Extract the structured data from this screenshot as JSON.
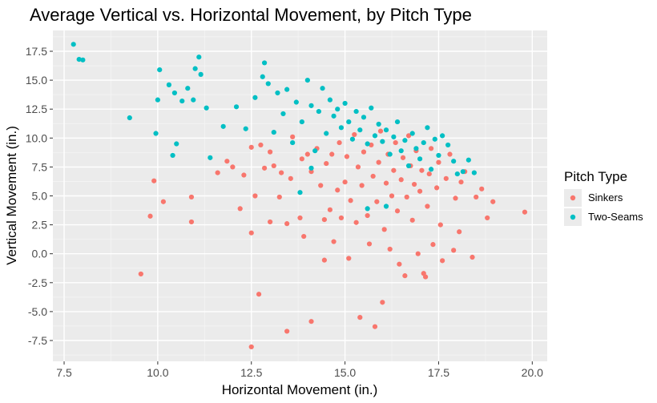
{
  "chart_data": {
    "type": "scatter",
    "title": "Average Vertical vs. Horizontal Movement, by Pitch Type",
    "xlabel": "Horizontal Movement (in.)",
    "ylabel": "Vertical Movement (in.)",
    "xlim": [
      7.2,
      20.4
    ],
    "ylim": [
      -9.3,
      19.3
    ],
    "x_ticks": [
      7.5,
      10.0,
      12.5,
      15.0,
      17.5,
      20.0
    ],
    "x_tick_labels": [
      "7.5",
      "10.0",
      "12.5",
      "15.0",
      "17.5",
      "20.0"
    ],
    "y_ticks": [
      -7.5,
      -5.0,
      -2.5,
      0.0,
      2.5,
      5.0,
      7.5,
      10.0,
      12.5,
      15.0,
      17.5
    ],
    "y_tick_labels": [
      "-7.5",
      "-5.0",
      "-2.5",
      "0.0",
      "2.5",
      "5.0",
      "7.5",
      "10.0",
      "12.5",
      "15.0",
      "17.5"
    ],
    "grid": true,
    "legend": {
      "title": "Pitch Type",
      "placement": "right"
    },
    "series": [
      {
        "name": "Sinkers",
        "color": "#F8766D",
        "points": [
          [
            9.55,
            -1.75
          ],
          [
            9.8,
            3.25
          ],
          [
            9.9,
            6.3
          ],
          [
            10.15,
            4.5
          ],
          [
            10.9,
            4.9
          ],
          [
            10.9,
            2.75
          ],
          [
            11.6,
            7.0
          ],
          [
            11.85,
            8.0
          ],
          [
            12.0,
            7.5
          ],
          [
            12.2,
            3.9
          ],
          [
            12.3,
            6.8
          ],
          [
            12.5,
            9.2
          ],
          [
            12.5,
            1.8
          ],
          [
            12.5,
            -8.05
          ],
          [
            12.6,
            5.0
          ],
          [
            12.7,
            -3.5
          ],
          [
            12.75,
            9.4
          ],
          [
            12.85,
            7.4
          ],
          [
            13.0,
            2.75
          ],
          [
            13.0,
            8.8
          ],
          [
            13.1,
            7.6
          ],
          [
            13.25,
            4.9
          ],
          [
            13.3,
            7.0
          ],
          [
            13.45,
            2.6
          ],
          [
            13.45,
            -6.7
          ],
          [
            13.55,
            6.5
          ],
          [
            13.6,
            10.1
          ],
          [
            13.8,
            3.1
          ],
          [
            13.85,
            8.2
          ],
          [
            13.9,
            1.5
          ],
          [
            14.0,
            8.6
          ],
          [
            14.1,
            -5.85
          ],
          [
            14.1,
            7.1
          ],
          [
            14.25,
            9.1
          ],
          [
            14.35,
            5.9
          ],
          [
            14.45,
            -0.55
          ],
          [
            14.45,
            2.95
          ],
          [
            14.5,
            7.8
          ],
          [
            14.6,
            3.8
          ],
          [
            14.65,
            8.6
          ],
          [
            14.7,
            1.05
          ],
          [
            14.8,
            5.5
          ],
          [
            14.85,
            9.6
          ],
          [
            14.9,
            3.1
          ],
          [
            15.0,
            6.2
          ],
          [
            15.05,
            8.4
          ],
          [
            15.1,
            -0.4
          ],
          [
            15.15,
            4.6
          ],
          [
            15.25,
            10.3
          ],
          [
            15.3,
            2.7
          ],
          [
            15.35,
            7.5
          ],
          [
            15.4,
            -5.5
          ],
          [
            15.45,
            5.9
          ],
          [
            15.5,
            8.8
          ],
          [
            15.6,
            3.3
          ],
          [
            15.65,
            0.85
          ],
          [
            15.7,
            9.4
          ],
          [
            15.75,
            6.7
          ],
          [
            15.8,
            -6.3
          ],
          [
            15.85,
            4.5
          ],
          [
            15.9,
            7.9
          ],
          [
            15.95,
            10.6
          ],
          [
            16.0,
            -4.2
          ],
          [
            16.05,
            2.1
          ],
          [
            16.1,
            6.1
          ],
          [
            16.15,
            8.6
          ],
          [
            16.2,
            0.4
          ],
          [
            16.25,
            5.0
          ],
          [
            16.3,
            7.2
          ],
          [
            16.35,
            9.6
          ],
          [
            16.4,
            3.7
          ],
          [
            16.45,
            -0.9
          ],
          [
            16.5,
            6.4
          ],
          [
            16.55,
            8.3
          ],
          [
            16.6,
            -1.9
          ],
          [
            16.65,
            4.9
          ],
          [
            16.7,
            10.2
          ],
          [
            16.75,
            7.6
          ],
          [
            16.8,
            2.9
          ],
          [
            16.85,
            6.0
          ],
          [
            16.9,
            8.9
          ],
          [
            16.95,
            0.0
          ],
          [
            17.0,
            5.4
          ],
          [
            17.05,
            7.2
          ],
          [
            17.1,
            -1.7
          ],
          [
            17.15,
            -2.0
          ],
          [
            17.2,
            4.1
          ],
          [
            17.25,
            6.9
          ],
          [
            17.3,
            9.1
          ],
          [
            17.35,
            0.8
          ],
          [
            17.45,
            5.7
          ],
          [
            17.5,
            7.9
          ],
          [
            17.55,
            2.5
          ],
          [
            17.6,
            -0.6
          ],
          [
            17.7,
            6.5
          ],
          [
            17.8,
            8.6
          ],
          [
            17.9,
            0.3
          ],
          [
            17.95,
            4.8
          ],
          [
            18.05,
            1.9
          ],
          [
            18.1,
            6.2
          ],
          [
            18.2,
            7.1
          ],
          [
            18.4,
            -0.3
          ],
          [
            18.5,
            4.9
          ],
          [
            18.65,
            5.6
          ],
          [
            18.8,
            3.1
          ],
          [
            18.95,
            4.5
          ],
          [
            19.8,
            3.6
          ]
        ]
      },
      {
        "name": "Two-Seams",
        "color": "#00BFC4",
        "points": [
          [
            7.75,
            18.1
          ],
          [
            7.9,
            16.8
          ],
          [
            8.0,
            16.75
          ],
          [
            9.25,
            11.75
          ],
          [
            9.95,
            10.4
          ],
          [
            10.0,
            13.3
          ],
          [
            10.05,
            15.9
          ],
          [
            10.3,
            14.6
          ],
          [
            10.4,
            8.5
          ],
          [
            10.45,
            13.9
          ],
          [
            10.5,
            9.5
          ],
          [
            10.65,
            13.2
          ],
          [
            10.8,
            14.3
          ],
          [
            10.95,
            13.3
          ],
          [
            11.0,
            16.0
          ],
          [
            11.1,
            17.0
          ],
          [
            11.15,
            15.5
          ],
          [
            11.3,
            12.6
          ],
          [
            11.4,
            8.3
          ],
          [
            11.75,
            11.0
          ],
          [
            12.1,
            12.7
          ],
          [
            12.35,
            10.8
          ],
          [
            12.6,
            13.5
          ],
          [
            12.8,
            15.3
          ],
          [
            12.85,
            16.5
          ],
          [
            12.95,
            14.7
          ],
          [
            13.1,
            10.5
          ],
          [
            13.2,
            13.9
          ],
          [
            13.35,
            12.1
          ],
          [
            13.45,
            14.2
          ],
          [
            13.6,
            9.6
          ],
          [
            13.7,
            13.1
          ],
          [
            13.8,
            5.3
          ],
          [
            13.85,
            11.4
          ],
          [
            14.0,
            15.0
          ],
          [
            14.1,
            12.8
          ],
          [
            14.2,
            8.9
          ],
          [
            14.3,
            12.3
          ],
          [
            14.4,
            14.3
          ],
          [
            14.5,
            10.4
          ],
          [
            14.6,
            13.3
          ],
          [
            14.7,
            11.9
          ],
          [
            14.8,
            12.5
          ],
          [
            14.9,
            10.9
          ],
          [
            15.0,
            13.0
          ],
          [
            15.1,
            11.4
          ],
          [
            15.2,
            9.9
          ],
          [
            15.3,
            12.3
          ],
          [
            15.4,
            10.7
          ],
          [
            15.5,
            11.8
          ],
          [
            15.6,
            9.5
          ],
          [
            15.7,
            12.6
          ],
          [
            15.8,
            10.2
          ],
          [
            15.9,
            11.2
          ],
          [
            16.0,
            9.7
          ],
          [
            16.1,
            10.7
          ],
          [
            16.2,
            8.6
          ],
          [
            16.3,
            10.1
          ],
          [
            16.4,
            11.4
          ],
          [
            16.5,
            8.9
          ],
          [
            16.6,
            9.8
          ],
          [
            16.7,
            7.6
          ],
          [
            16.8,
            10.4
          ],
          [
            16.9,
            9.1
          ],
          [
            17.0,
            8.2
          ],
          [
            17.1,
            9.6
          ],
          [
            17.2,
            10.9
          ],
          [
            17.3,
            7.3
          ],
          [
            17.4,
            9.9
          ],
          [
            17.5,
            8.5
          ],
          [
            17.6,
            10.2
          ],
          [
            17.75,
            9.4
          ],
          [
            17.9,
            8.0
          ],
          [
            18.0,
            6.9
          ],
          [
            18.15,
            7.1
          ],
          [
            18.3,
            8.1
          ],
          [
            18.45,
            7.0
          ],
          [
            16.1,
            4.1
          ],
          [
            15.6,
            3.9
          ],
          [
            14.1,
            7.4
          ]
        ]
      }
    ]
  }
}
